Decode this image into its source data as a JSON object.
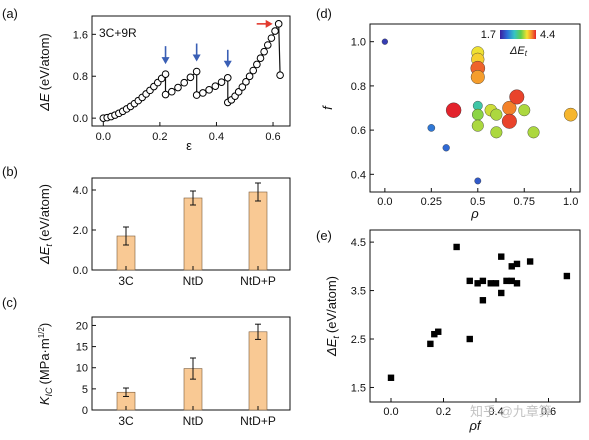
{
  "colors": {
    "bar_fill": "#F9C994",
    "bar_stroke": "#7a5a3a",
    "arrow_blue": "#3a5fb5",
    "arrow_red": "#e23b2f",
    "marker": "#000000"
  },
  "chart_data": [
    {
      "panel": "(a)",
      "type": "line",
      "annotation": "3C+9R",
      "xlabel": "ε",
      "ylabel_symbol": "ΔE",
      "ylabel_unit": "(eV/atom)",
      "xlim": [
        -0.04,
        0.66
      ],
      "ylim": [
        -0.15,
        1.95
      ],
      "xticks": [
        0.0,
        0.2,
        0.4,
        0.6
      ],
      "xtick_labels": [
        "0.0",
        "0.2",
        "0.4",
        "0.6"
      ],
      "yticks": [
        0.0,
        0.8,
        1.6
      ],
      "ytick_labels": [
        "0.0",
        "0.8",
        "1.6"
      ],
      "segments": [
        {
          "x_start": 0.0,
          "x_end": 0.22,
          "y_start": 0.0,
          "y_end": 0.84
        },
        {
          "x_start": 0.22,
          "x_end": 0.33,
          "y_start": 0.45,
          "y_end": 0.89
        },
        {
          "x_start": 0.33,
          "x_end": 0.44,
          "y_start": 0.44,
          "y_end": 0.77
        },
        {
          "x_start": 0.44,
          "x_end": 0.62,
          "y_start": 0.3,
          "y_end": 1.8
        }
      ],
      "drops": [
        {
          "x": 0.22,
          "from": 0.84,
          "to": 0.45
        },
        {
          "x": 0.33,
          "from": 0.89,
          "to": 0.44
        },
        {
          "x": 0.44,
          "from": 0.77,
          "to": 0.3
        },
        {
          "x": 0.625,
          "from": 1.8,
          "to": 0.82
        }
      ],
      "blue_arrows_x": [
        0.22,
        0.33,
        0.44
      ],
      "red_arrow_at": [
        0.62,
        1.8
      ]
    },
    {
      "panel": "(b)",
      "type": "bar",
      "categories": [
        "3C",
        "NtD",
        "NtD+P"
      ],
      "values": [
        1.7,
        3.6,
        3.9
      ],
      "errors": [
        0.45,
        0.35,
        0.45
      ],
      "ylabel_symbol": "ΔE",
      "ylabel_sub": "t",
      "ylabel_unit": "(eV/atom)",
      "ylim": [
        0,
        4.6
      ],
      "yticks": [
        0.0,
        2.0,
        4.0
      ],
      "ytick_labels": [
        "0.0",
        "2.0",
        "4.0"
      ]
    },
    {
      "panel": "(c)",
      "type": "bar",
      "categories": [
        "3C",
        "NtD",
        "NtD+P"
      ],
      "values": [
        4.2,
        9.8,
        18.5
      ],
      "errors": [
        1.0,
        2.5,
        1.8
      ],
      "ylabel_symbol": "K",
      "ylabel_sub": "IC",
      "ylabel_unit": "(MPa·m",
      "ylabel_sup": "1/2",
      "ylabel_close": ")",
      "ylim": [
        0,
        22
      ],
      "yticks": [
        0,
        5,
        10,
        15,
        20
      ],
      "ytick_labels": [
        "0",
        "5",
        "10",
        "15",
        "20"
      ]
    },
    {
      "panel": "(d)",
      "type": "scatter",
      "xlabel": "ρ",
      "ylabel": "f",
      "xlim": [
        -0.08,
        1.05
      ],
      "ylim": [
        0.32,
        1.08
      ],
      "xticks": [
        0.0,
        0.25,
        0.5,
        0.75,
        1.0
      ],
      "xtick_labels": [
        "0.0",
        "0.25",
        "0.5",
        "0.75",
        "1.0"
      ],
      "yticks": [
        0.4,
        0.6,
        0.8,
        1.0
      ],
      "ytick_labels": [
        "0.4",
        "0.6",
        "0.8",
        "1.0"
      ],
      "colorbar": {
        "min_label": "1.7",
        "max_label": "4.4",
        "label": "ΔE",
        "label_sub": "t",
        "min": 1.7,
        "max": 4.4
      },
      "points": [
        {
          "x": 0.0,
          "y": 1.0,
          "value": 1.9
        },
        {
          "x": 0.25,
          "y": 0.61,
          "value": 2.3
        },
        {
          "x": 0.33,
          "y": 0.52,
          "value": 2.2
        },
        {
          "x": 0.5,
          "y": 0.37,
          "value": 2.1
        },
        {
          "x": 0.5,
          "y": 0.71,
          "value": 2.9
        },
        {
          "x": 0.5,
          "y": 0.95,
          "value": 3.7
        },
        {
          "x": 0.5,
          "y": 0.92,
          "value": 3.8
        },
        {
          "x": 0.5,
          "y": 0.88,
          "value": 4.2
        },
        {
          "x": 0.5,
          "y": 0.84,
          "value": 4.0
        },
        {
          "x": 0.5,
          "y": 0.67,
          "value": 3.4
        },
        {
          "x": 0.5,
          "y": 0.62,
          "value": 3.5
        },
        {
          "x": 0.57,
          "y": 0.69,
          "value": 3.6
        },
        {
          "x": 0.6,
          "y": 0.67,
          "value": 3.5
        },
        {
          "x": 0.6,
          "y": 0.59,
          "value": 3.5
        },
        {
          "x": 0.67,
          "y": 0.7,
          "value": 4.1
        },
        {
          "x": 0.67,
          "y": 0.64,
          "value": 4.3
        },
        {
          "x": 0.71,
          "y": 0.75,
          "value": 4.3
        },
        {
          "x": 0.37,
          "y": 0.69,
          "value": 4.4
        },
        {
          "x": 0.75,
          "y": 0.69,
          "value": 3.5
        },
        {
          "x": 0.8,
          "y": 0.59,
          "value": 3.5
        },
        {
          "x": 1.0,
          "y": 0.67,
          "value": 3.9
        }
      ]
    },
    {
      "panel": "(e)",
      "type": "scatter",
      "xlabel": "ρf",
      "ylabel_symbol": "ΔE",
      "ylabel_sub": "t",
      "ylabel_unit": "(eV/atom)",
      "xlim": [
        -0.08,
        0.72
      ],
      "ylim": [
        1.2,
        4.75
      ],
      "xticks": [
        0.0,
        0.2,
        0.4,
        0.6
      ],
      "xtick_labels": [
        "0.0",
        "0.2",
        "0.4",
        "0.6"
      ],
      "yticks": [
        1.5,
        2.5,
        3.5,
        4.5
      ],
      "ytick_labels": [
        "1.5",
        "2.5",
        "3.5",
        "4.5"
      ],
      "points": [
        {
          "x": 0.0,
          "y": 1.7
        },
        {
          "x": 0.15,
          "y": 2.4
        },
        {
          "x": 0.165,
          "y": 2.6
        },
        {
          "x": 0.18,
          "y": 2.65
        },
        {
          "x": 0.25,
          "y": 4.4
        },
        {
          "x": 0.3,
          "y": 3.7
        },
        {
          "x": 0.3,
          "y": 2.5
        },
        {
          "x": 0.33,
          "y": 3.65
        },
        {
          "x": 0.35,
          "y": 3.7
        },
        {
          "x": 0.35,
          "y": 3.3
        },
        {
          "x": 0.38,
          "y": 3.65
        },
        {
          "x": 0.4,
          "y": 3.65
        },
        {
          "x": 0.42,
          "y": 4.2
        },
        {
          "x": 0.42,
          "y": 3.45
        },
        {
          "x": 0.44,
          "y": 3.7
        },
        {
          "x": 0.46,
          "y": 3.7
        },
        {
          "x": 0.46,
          "y": 4.0
        },
        {
          "x": 0.48,
          "y": 4.05
        },
        {
          "x": 0.48,
          "y": 3.65
        },
        {
          "x": 0.53,
          "y": 4.1
        },
        {
          "x": 0.67,
          "y": 3.8
        }
      ]
    }
  ],
  "watermark": {
    "text": "知乎 @九章算"
  }
}
